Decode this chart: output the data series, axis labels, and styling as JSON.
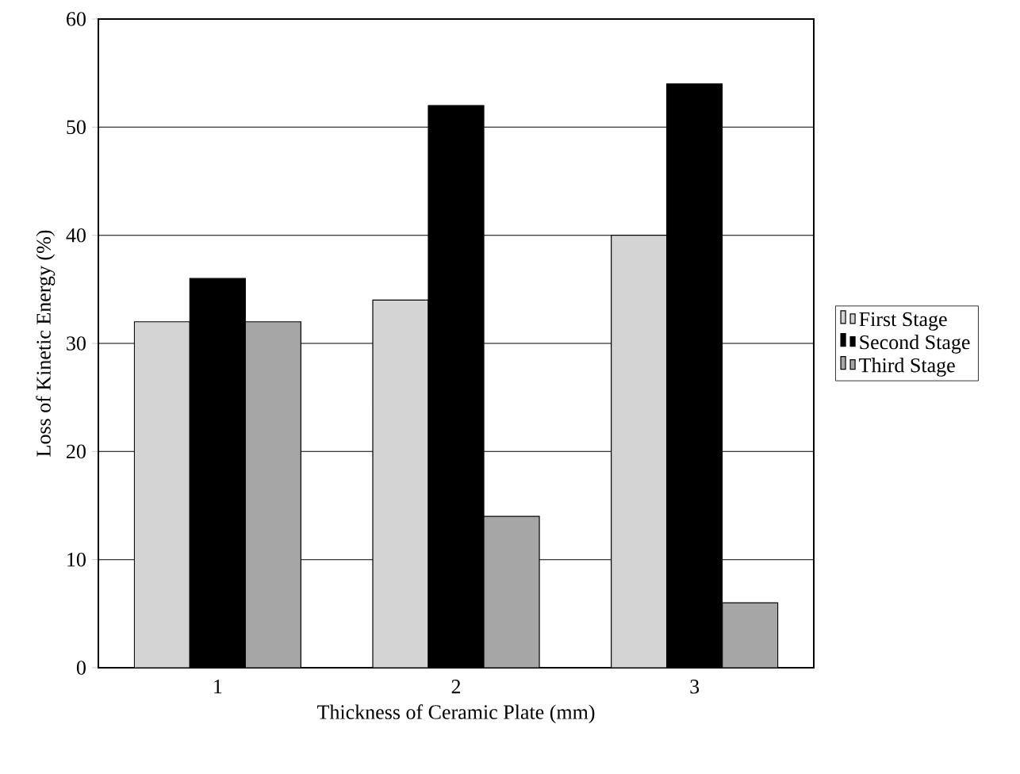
{
  "chart_data": {
    "type": "bar",
    "xlabel": "Thickness of Ceramic Plate (mm)",
    "ylabel": "Loss of Kinetic Energy (%)",
    "categories": [
      "1",
      "2",
      "3"
    ],
    "series": [
      {
        "name": "First Stage",
        "color": "#d4d4d4",
        "values": [
          32,
          34,
          40
        ]
      },
      {
        "name": "Second Stage",
        "color": "#000000",
        "values": [
          36,
          52,
          54
        ]
      },
      {
        "name": "Third Stage",
        "color": "#a6a6a6",
        "values": [
          32,
          14,
          6
        ]
      }
    ],
    "ylim": [
      0,
      60
    ],
    "yticks": [
      0,
      10,
      20,
      30,
      40,
      50,
      60
    ],
    "grid": "y",
    "legend": "right"
  }
}
